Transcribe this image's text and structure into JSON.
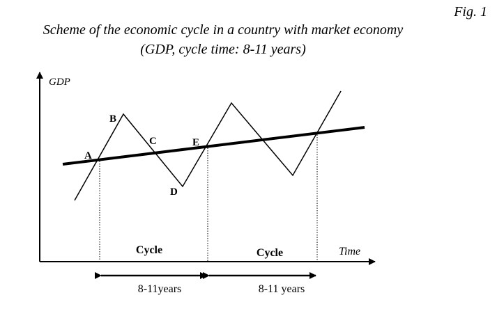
{
  "figure_label": "Fig. 1",
  "title_line1": "Scheme of the economic cycle in a country with market economy",
  "title_line2": "(GDP, cycle time: 8-11 years)",
  "axes": {
    "y_label": "GDP",
    "x_label": "Time"
  },
  "points": {
    "a": "A",
    "b": "B",
    "c": "C",
    "d": "D",
    "e": "E"
  },
  "cycles": {
    "first": {
      "label": "Cycle",
      "duration": "8-11years"
    },
    "second": {
      "label": "Cycle",
      "duration": "8-11 years"
    }
  }
}
